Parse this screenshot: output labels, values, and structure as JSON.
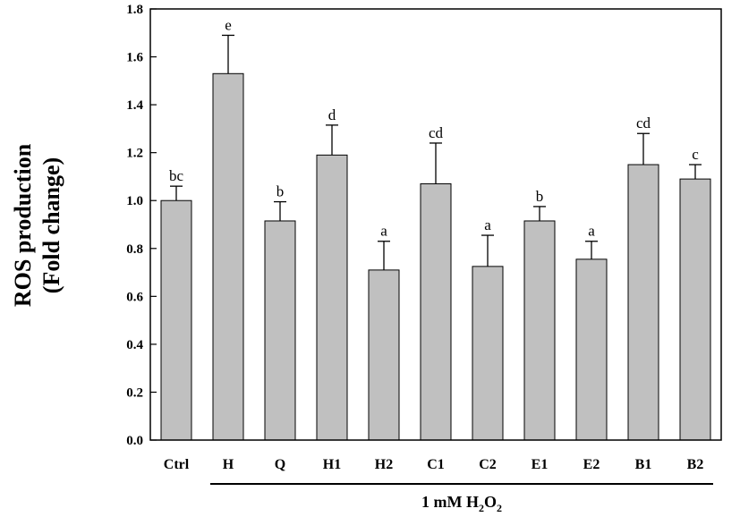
{
  "chart_data": {
    "type": "bar",
    "ylabel_line1": "ROS production",
    "ylabel_line2": "(Fold change)",
    "ylim": [
      0,
      1.8
    ],
    "yticks": [
      "0.0",
      "0.2",
      "0.4",
      "0.6",
      "0.8",
      "1.0",
      "1.2",
      "1.4",
      "1.6",
      "1.8"
    ],
    "categories": [
      "Ctrl",
      "H",
      "Q",
      "H1",
      "H2",
      "C1",
      "C2",
      "E1",
      "E2",
      "B1",
      "B2"
    ],
    "values": [
      1.0,
      1.53,
      0.915,
      1.19,
      0.71,
      1.07,
      0.725,
      0.915,
      0.755,
      1.15,
      1.09
    ],
    "errors": [
      0.06,
      0.16,
      0.08,
      0.125,
      0.12,
      0.17,
      0.13,
      0.06,
      0.075,
      0.13,
      0.06
    ],
    "significance": [
      "bc",
      "e",
      "b",
      "d",
      "a",
      "cd",
      "a",
      "b",
      "a",
      "cd",
      "c"
    ],
    "group_bracket": {
      "label_prefix": "1 mM H",
      "label_sub1": "2",
      "label_mid": "O",
      "label_sub2": "2",
      "from_category": "H",
      "to_category": "B2"
    },
    "bar_color": "#c0c0c0",
    "grid": false
  }
}
